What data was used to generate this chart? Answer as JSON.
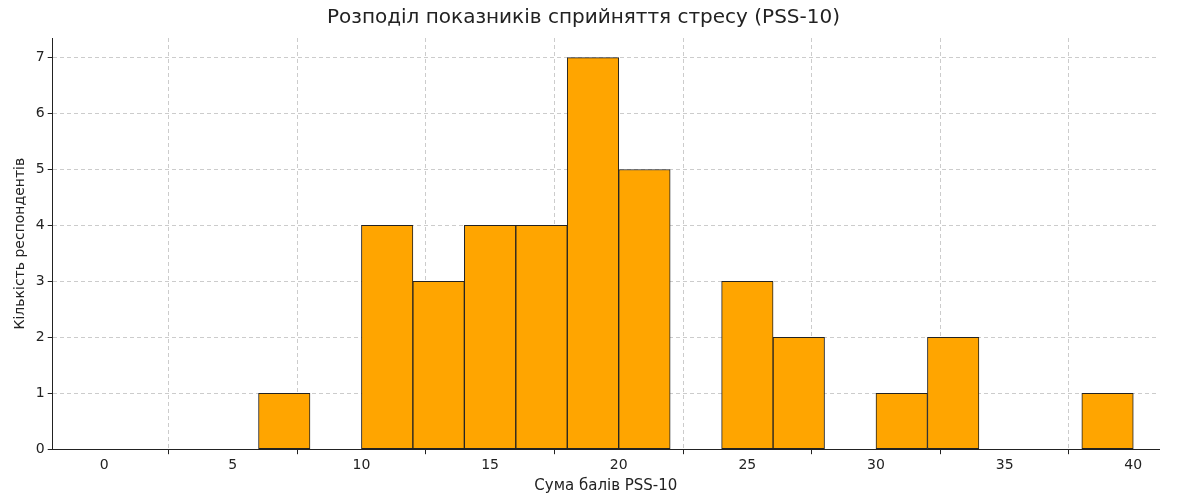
{
  "chart_data": {
    "type": "histogram",
    "title": "Розподіл показників сприйняття стресу (PSS-10)",
    "xlabel": "Сума балів PSS-10",
    "ylabel": "Кількість респондентів",
    "bins": [
      6,
      8,
      10,
      12,
      14,
      16,
      18,
      20,
      22,
      24,
      26,
      28,
      30,
      32,
      34,
      36,
      38,
      40
    ],
    "values": [
      1,
      0,
      4,
      3,
      4,
      4,
      7,
      5,
      0,
      3,
      2,
      0,
      1,
      2,
      0,
      0,
      1
    ],
    "color": "#ffa500",
    "xlim": [
      -2,
      41
    ],
    "xticks": [
      0,
      5,
      10,
      15,
      20,
      25,
      30,
      35,
      40
    ],
    "ylim": [
      0,
      7.35
    ],
    "yticks": [
      0,
      1,
      2,
      3,
      4,
      5,
      6,
      7
    ],
    "grid": true
  }
}
